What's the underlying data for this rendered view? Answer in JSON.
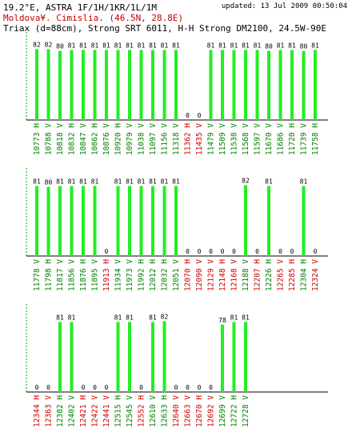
{
  "header": {
    "title": "19.2°E, ASTRA 1F/1H/1KR/1L/1M",
    "updated": "updated: 13 Jul 2009 00:50:04",
    "location": "Moldova¥. Cimislia.  (46.5N, 28.8E)",
    "setup": "Triax (d=88cm), Strong SRT 6011, H-H Strong DM2100, 24.5W-90E"
  },
  "colors": {
    "bar": "#22ee22",
    "axis": "#000000",
    "axis_left_tick": "#00aa00",
    "label_locked": "#008000",
    "label_unlocked": "#cc0000"
  },
  "chart_data": [
    {
      "type": "bar",
      "ylim": [
        0,
        100
      ],
      "categories": [
        "10773 H",
        "10788 V",
        "10818 V",
        "10832 H",
        "10847 V",
        "10862 H",
        "10876 V",
        "10920 H",
        "10979 V",
        "11038 V",
        "11097 V",
        "11156 V",
        "11318 V",
        "11362 H",
        "11435 V",
        "11479 V",
        "11509 V",
        "11538 V",
        "11568 V",
        "11597 V",
        "11670 V",
        "11686 V",
        "11720 H",
        "11739 V",
        "11758 H"
      ],
      "values": [
        82,
        82,
        80,
        81,
        81,
        81,
        81,
        81,
        81,
        81,
        81,
        81,
        81,
        0,
        0,
        81,
        81,
        81,
        81,
        81,
        80,
        81,
        81,
        80,
        81
      ]
    },
    {
      "type": "bar",
      "ylim": [
        0,
        100
      ],
      "categories": [
        "11778 V",
        "11798 H",
        "11817 V",
        "11856 V",
        "11876 H",
        "11895 V",
        "11913 H",
        "11934 V",
        "11973 V",
        "11992 H",
        "12012 H",
        "12032 H",
        "12051 V",
        "12070 H",
        "12090 V",
        "12129 V",
        "12148 H",
        "12168 V",
        "12188 V",
        "12207 H",
        "12226 H",
        "12265 V",
        "12285 H",
        "12304 H",
        "12324 V"
      ],
      "values": [
        81,
        80,
        81,
        81,
        81,
        81,
        0,
        81,
        81,
        81,
        81,
        81,
        81,
        0,
        0,
        0,
        0,
        0,
        82,
        0,
        81,
        0,
        0,
        81,
        0
      ]
    },
    {
      "type": "bar",
      "ylim": [
        0,
        100
      ],
      "categories": [
        "12344 H",
        "12363 V",
        "12382 H",
        "12402 V",
        "12421 H",
        "12422 V",
        "12441 V",
        "12515 H",
        "12545 V",
        "12552 H",
        "12610 V",
        "12633 H",
        "12640 V",
        "12663 V",
        "12670 H",
        "12692 V",
        "12699 V",
        "12722 H",
        "12728 V"
      ],
      "values": [
        0,
        0,
        81,
        81,
        0,
        0,
        0,
        81,
        81,
        0,
        81,
        82,
        0,
        0,
        0,
        0,
        78,
        81,
        81
      ]
    }
  ]
}
